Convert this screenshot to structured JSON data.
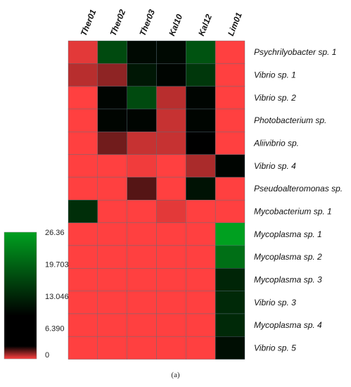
{
  "chart_data": {
    "type": "heatmap",
    "columns": [
      "Ther01",
      "Ther02",
      "Ther03",
      "Kal10",
      "Kal12",
      "Lim01"
    ],
    "rows": [
      "Psychrilyobacter sp. 1",
      "Vibrio sp. 1",
      "Vibrio sp. 2",
      "Photobacterium sp.",
      "Aliivibrio sp.",
      "Vibrio sp. 4",
      "Pseudoalteromonas sp.",
      "Mycobacterium sp. 1",
      "Mycoplasma sp. 1",
      "Mycoplasma sp. 2",
      "Mycoplasma sp. 3",
      "Vibrio sp. 3",
      "Mycoplasma sp. 4",
      "Vibrio sp. 5"
    ],
    "values": [
      [
        1.0,
        17.0,
        10.0,
        10.0,
        18.0,
        0.0
      ],
      [
        2.5,
        4.0,
        11.5,
        9.5,
        15.0,
        0.0
      ],
      [
        0.0,
        9.5,
        17.0,
        2.5,
        9.5,
        0.0
      ],
      [
        0.0,
        9.5,
        9.5,
        2.0,
        9.5,
        0.0
      ],
      [
        0.0,
        5.0,
        2.0,
        2.0,
        9.0,
        0.0
      ],
      [
        0.0,
        0.0,
        0.5,
        0.0,
        3.0,
        9.5
      ],
      [
        0.0,
        0.0,
        6.0,
        0.0,
        11.0,
        0.0
      ],
      [
        14.0,
        0.0,
        0.0,
        1.0,
        0.0,
        0.0
      ],
      [
        0.0,
        0.0,
        0.0,
        0.0,
        0.0,
        26.36
      ],
      [
        0.0,
        0.0,
        0.0,
        0.0,
        0.0,
        21.0
      ],
      [
        0.0,
        0.0,
        0.0,
        0.0,
        0.0,
        13.0
      ],
      [
        0.0,
        0.0,
        0.0,
        0.0,
        0.0,
        13.5
      ],
      [
        0.0,
        0.0,
        0.0,
        0.0,
        0.0,
        13.5
      ],
      [
        0.0,
        0.0,
        0.0,
        0.0,
        0.0,
        10.5
      ]
    ],
    "scale": {
      "min": 0,
      "max": 26.36,
      "ticks": [
        {
          "value": 26.36,
          "label": "26.36"
        },
        {
          "value": 19.703,
          "label": "19.703"
        },
        {
          "value": 13.046,
          "label": "13.046"
        },
        {
          "value": 6.39,
          "label": "6.390"
        },
        {
          "value": 0,
          "label": "0"
        }
      ],
      "colors": {
        "low": "#ff4040",
        "mid": "#000000",
        "high": "#00a020"
      },
      "black_point": 9.0
    },
    "caption": "(a)"
  }
}
